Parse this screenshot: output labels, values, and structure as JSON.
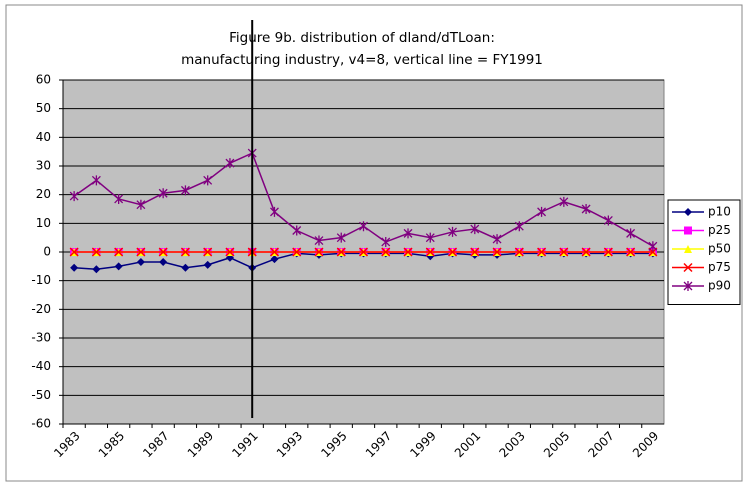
{
  "chart_data": {
    "type": "line",
    "title": [
      "Figure 9b. distribution of dland/dTLoan:",
      "manufacturing industry, v4=8, vertical line = FY1991"
    ],
    "categories": [
      "1983",
      null,
      "1985",
      null,
      "1987",
      null,
      "1989",
      null,
      "1991",
      null,
      "1993",
      null,
      "1995",
      null,
      "1997",
      null,
      "1999",
      null,
      "2001",
      null,
      "2003",
      null,
      "2005",
      null,
      "2007",
      null,
      "2009"
    ],
    "series": [
      {
        "name": "p10",
        "color": "#000080",
        "marker": "diamond",
        "values": [
          -5.5,
          -6,
          -5,
          -3.5,
          -3.5,
          -5.5,
          -4.5,
          -2,
          -5.5,
          -2.5,
          -0.5,
          -1,
          -0.5,
          -0.5,
          -0.5,
          -0.5,
          -1.5,
          -0.5,
          -1,
          -1,
          -0.5,
          -0.5,
          -0.5,
          -0.5,
          -0.5,
          -0.5,
          -0.5
        ]
      },
      {
        "name": "p25",
        "color": "#ff00ff",
        "marker": "square",
        "values": [
          0,
          0,
          0,
          0,
          0,
          0,
          0,
          0,
          0,
          0,
          0,
          0,
          0,
          0,
          0,
          0,
          0,
          0,
          0,
          0,
          0,
          0,
          0,
          0,
          0,
          0,
          0
        ]
      },
      {
        "name": "p50",
        "color": "#ffff00",
        "marker": "triangle",
        "values": [
          0,
          0,
          0,
          0,
          0,
          0,
          0,
          0,
          0,
          0,
          0,
          0,
          0,
          0,
          0,
          0,
          0,
          0,
          0,
          0,
          0,
          0,
          0,
          0,
          0,
          0,
          0
        ]
      },
      {
        "name": "p75",
        "color": "#ff0000",
        "marker": "x",
        "values": [
          0,
          0,
          0,
          0,
          0,
          0,
          0,
          0,
          0,
          0,
          0,
          0,
          0,
          0,
          0,
          0,
          0,
          0,
          0,
          0,
          0,
          0,
          0,
          0,
          0,
          0,
          0
        ]
      },
      {
        "name": "p90",
        "color": "#800080",
        "marker": "star",
        "values": [
          19.5,
          25,
          18.5,
          16.5,
          20.5,
          21.5,
          25,
          31,
          34.5,
          14,
          7.5,
          4,
          5,
          9,
          3.5,
          6.5,
          5,
          7,
          8,
          4.5,
          9,
          14,
          17.5,
          15,
          11,
          6.5,
          2
        ]
      }
    ],
    "vline": 1991,
    "ylim": [
      -60,
      60
    ],
    "yticks": [
      -60,
      -50,
      -40,
      -30,
      -20,
      -10,
      0,
      10,
      20,
      30,
      40,
      50,
      60
    ],
    "grid": true,
    "legend": "right",
    "plot_background": "#c0c0c0"
  }
}
